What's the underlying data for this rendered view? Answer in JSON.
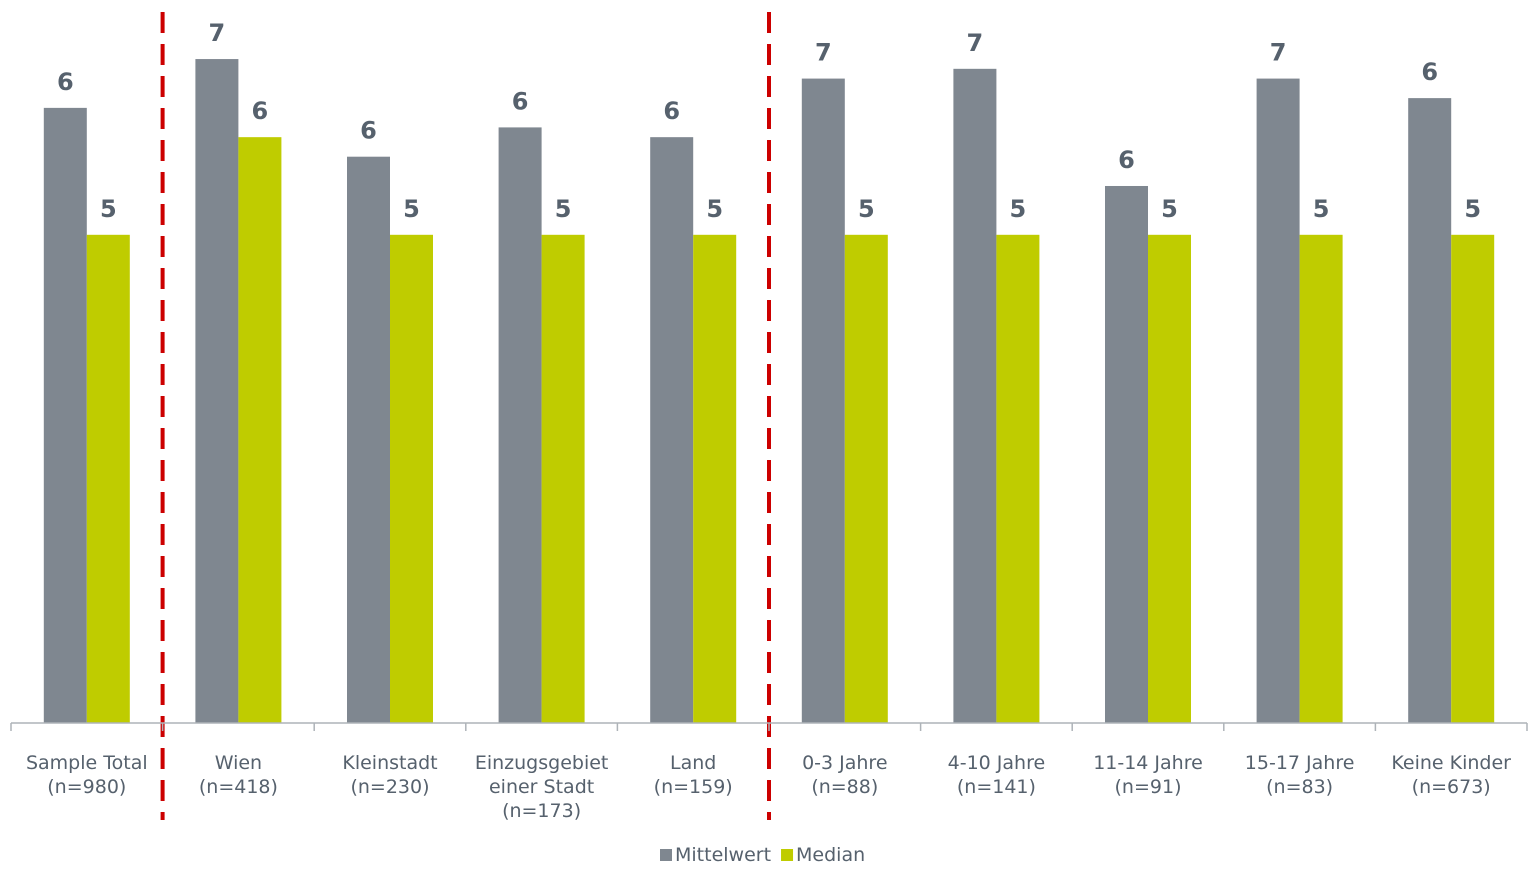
{
  "chart_data": {
    "type": "bar",
    "categories": [
      [
        "Sample Total",
        "(n=980)"
      ],
      [
        "Wien",
        "(n=418)"
      ],
      [
        "Kleinstadt",
        "(n=230)"
      ],
      [
        "Einzugsgebiet",
        "einer Stadt",
        "(n=173)"
      ],
      [
        "Land",
        "(n=159)"
      ],
      [
        "0-3 Jahre",
        "(n=88)"
      ],
      [
        "4-10 Jahre",
        "(n=141)"
      ],
      [
        "11-14 Jahre",
        "(n=91)"
      ],
      [
        "15-17 Jahre",
        "(n=83)"
      ],
      [
        "Keine Kinder",
        "(n=673)"
      ]
    ],
    "series": [
      {
        "name": "Mittelwert",
        "color": "#7f8790",
        "values": [
          6.3,
          6.8,
          5.8,
          6.1,
          6.0,
          6.6,
          6.7,
          5.5,
          6.6,
          6.4
        ],
        "labels": [
          "6",
          "7",
          "6",
          "6",
          "6",
          "7",
          "7",
          "6",
          "7",
          "6"
        ]
      },
      {
        "name": "Median",
        "color": "#bfcc00",
        "values": [
          5,
          6,
          5,
          5,
          5,
          5,
          5,
          5,
          5,
          5
        ],
        "labels": [
          "5",
          "6",
          "5",
          "5",
          "5",
          "5",
          "5",
          "5",
          "5",
          "5"
        ]
      }
    ],
    "ylim": [
      0,
      7.2
    ],
    "grid": false,
    "legend_position": "bottom-center",
    "separators_after_category_index": [
      0,
      4
    ],
    "separator_color": "#cc0000"
  }
}
